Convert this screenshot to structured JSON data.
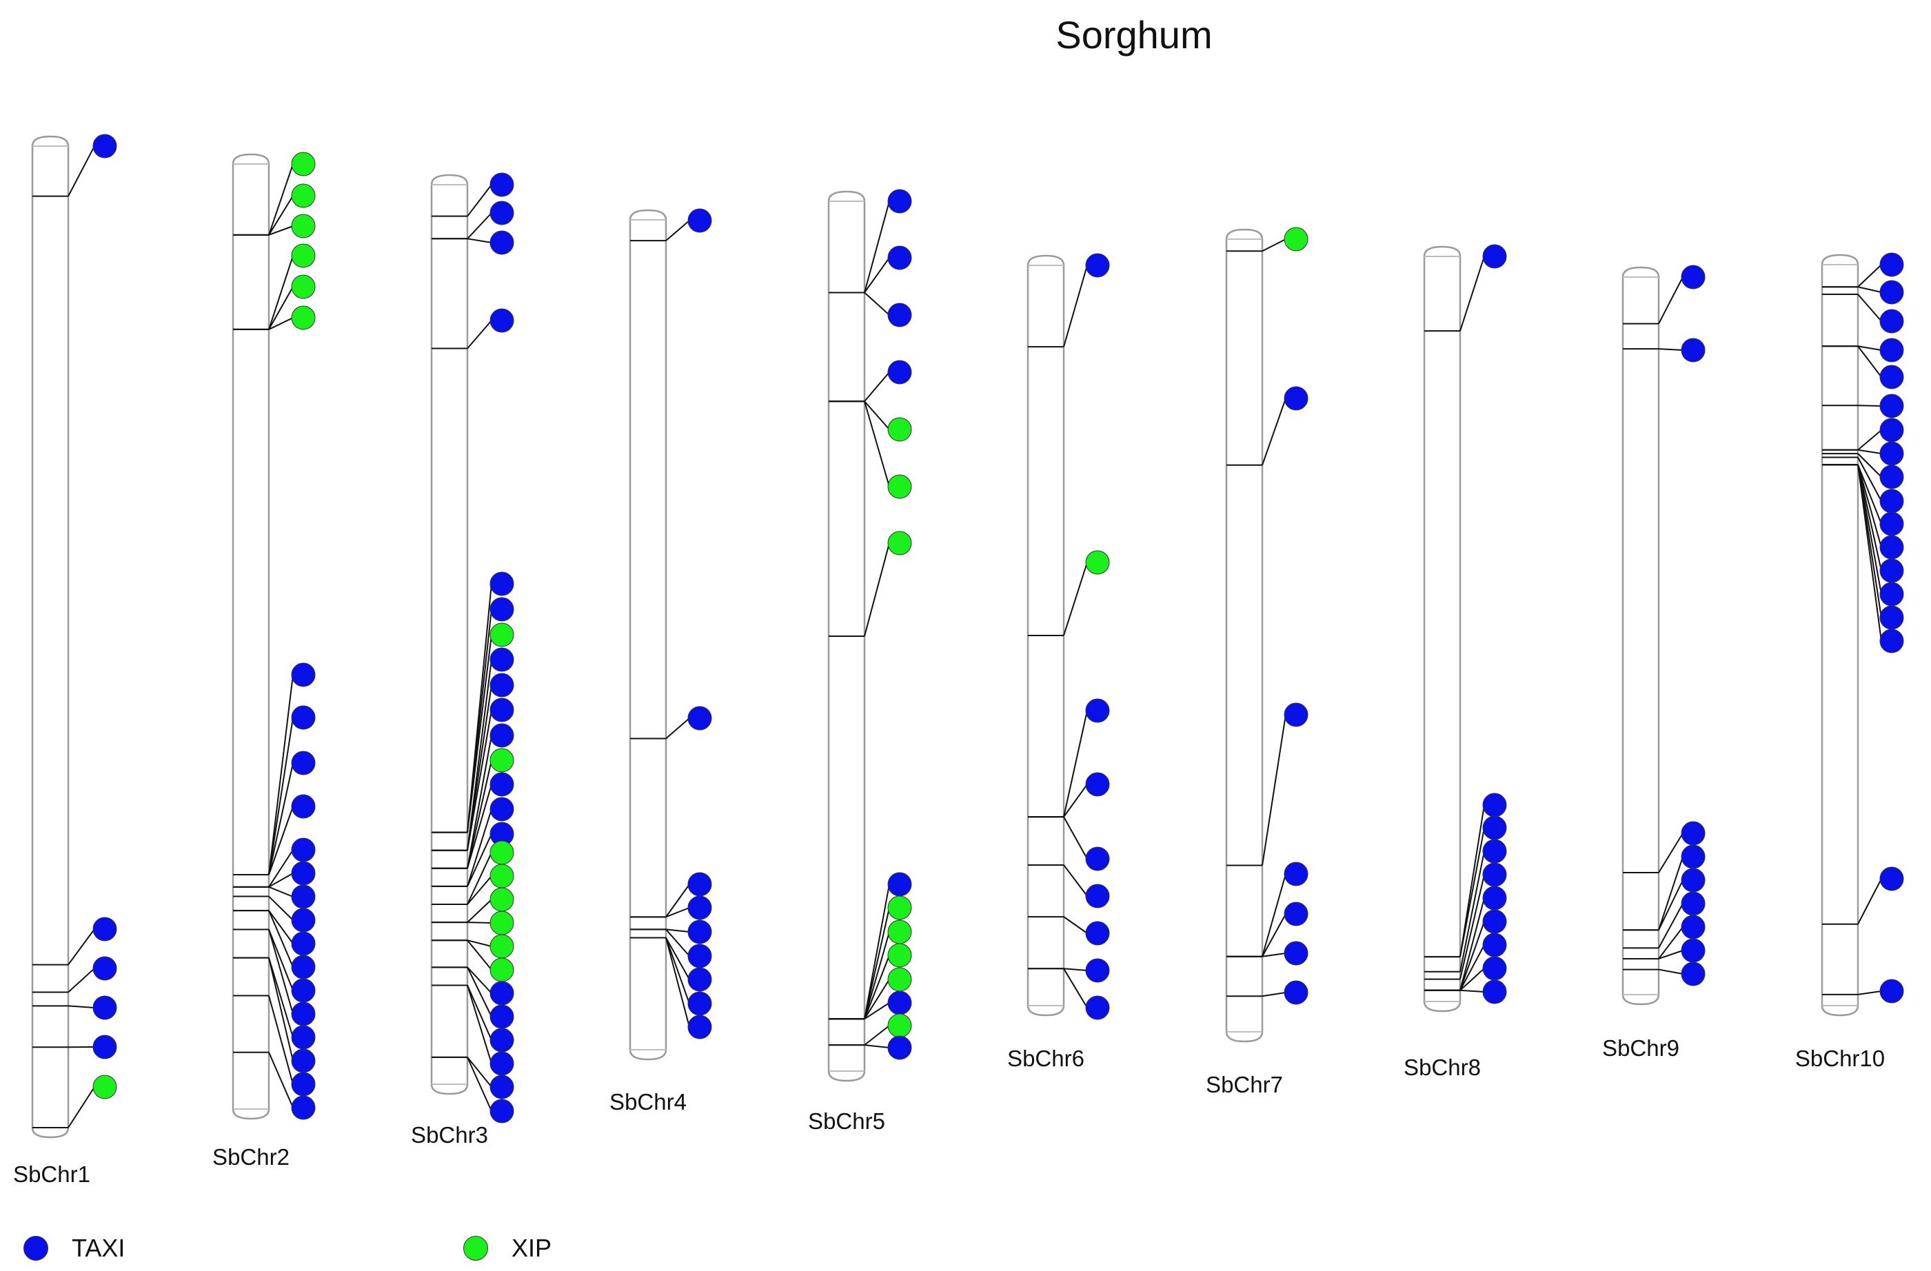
{
  "title": "Sorghum",
  "colors": {
    "TAXI": "#0a10e8",
    "XIP": "#1cf01c"
  },
  "legend": [
    {
      "label": "TAXI",
      "type": "TAXI"
    },
    {
      "label": "XIP",
      "type": "XIP"
    }
  ],
  "chromosomes": [
    {
      "name": "SbChr1",
      "genes": [
        {
          "type": "TAXI",
          "pos": 0.051
        },
        {
          "type": "TAXI",
          "pos": 0.834
        },
        {
          "type": "TAXI",
          "pos": 0.862
        },
        {
          "type": "TAXI",
          "pos": 0.876
        },
        {
          "type": "TAXI",
          "pos": 0.918
        },
        {
          "type": "XIP",
          "pos": 1.0
        }
      ]
    },
    {
      "name": "SbChr2",
      "genes": [
        {
          "type": "XIP",
          "pos": 0.075
        },
        {
          "type": "XIP",
          "pos": 0.075
        },
        {
          "type": "XIP",
          "pos": 0.075
        },
        {
          "type": "XIP",
          "pos": 0.175
        },
        {
          "type": "XIP",
          "pos": 0.175
        },
        {
          "type": "XIP",
          "pos": 0.175
        },
        {
          "type": "TAXI",
          "pos": 0.752
        },
        {
          "type": "TAXI",
          "pos": 0.752
        },
        {
          "type": "TAXI",
          "pos": 0.752
        },
        {
          "type": "TAXI",
          "pos": 0.752
        },
        {
          "type": "TAXI",
          "pos": 0.765
        },
        {
          "type": "TAXI",
          "pos": 0.765
        },
        {
          "type": "TAXI",
          "pos": 0.765
        },
        {
          "type": "TAXI",
          "pos": 0.775
        },
        {
          "type": "TAXI",
          "pos": 0.79
        },
        {
          "type": "TAXI",
          "pos": 0.79
        },
        {
          "type": "TAXI",
          "pos": 0.81
        },
        {
          "type": "TAXI",
          "pos": 0.81
        },
        {
          "type": "TAXI",
          "pos": 0.84
        },
        {
          "type": "TAXI",
          "pos": 0.84
        },
        {
          "type": "TAXI",
          "pos": 0.88
        },
        {
          "type": "TAXI",
          "pos": 0.94
        }
      ]
    },
    {
      "name": "SbChr3",
      "genes": [
        {
          "type": "TAXI",
          "pos": 0.035
        },
        {
          "type": "TAXI",
          "pos": 0.06
        },
        {
          "type": "TAXI",
          "pos": 0.06
        },
        {
          "type": "TAXI",
          "pos": 0.182
        },
        {
          "type": "TAXI",
          "pos": 0.72
        },
        {
          "type": "TAXI",
          "pos": 0.72
        },
        {
          "type": "XIP",
          "pos": 0.72
        },
        {
          "type": "TAXI",
          "pos": 0.74
        },
        {
          "type": "TAXI",
          "pos": 0.74
        },
        {
          "type": "TAXI",
          "pos": 0.74
        },
        {
          "type": "TAXI",
          "pos": 0.76
        },
        {
          "type": "XIP",
          "pos": 0.76
        },
        {
          "type": "TAXI",
          "pos": 0.76
        },
        {
          "type": "TAXI",
          "pos": 0.78
        },
        {
          "type": "TAXI",
          "pos": 0.78
        },
        {
          "type": "XIP",
          "pos": 0.8
        },
        {
          "type": "XIP",
          "pos": 0.8
        },
        {
          "type": "XIP",
          "pos": 0.82
        },
        {
          "type": "XIP",
          "pos": 0.82
        },
        {
          "type": "XIP",
          "pos": 0.84
        },
        {
          "type": "XIP",
          "pos": 0.84
        },
        {
          "type": "TAXI",
          "pos": 0.87
        },
        {
          "type": "TAXI",
          "pos": 0.87
        },
        {
          "type": "TAXI",
          "pos": 0.89
        },
        {
          "type": "TAXI",
          "pos": 0.89
        },
        {
          "type": "TAXI",
          "pos": 0.97
        },
        {
          "type": "TAXI",
          "pos": 0.97
        }
      ]
    },
    {
      "name": "SbChr4",
      "genes": [
        {
          "type": "TAXI",
          "pos": 0.025
        },
        {
          "type": "TAXI",
          "pos": 0.625
        },
        {
          "type": "TAXI",
          "pos": 0.84
        },
        {
          "type": "TAXI",
          "pos": 0.84
        },
        {
          "type": "TAXI",
          "pos": 0.855
        },
        {
          "type": "TAXI",
          "pos": 0.855
        },
        {
          "type": "TAXI",
          "pos": 0.865
        },
        {
          "type": "TAXI",
          "pos": 0.865
        },
        {
          "type": "TAXI",
          "pos": 0.865
        }
      ]
    },
    {
      "name": "SbChr5",
      "genes": [
        {
          "type": "TAXI",
          "pos": 0.105
        },
        {
          "type": "TAXI",
          "pos": 0.105
        },
        {
          "type": "TAXI",
          "pos": 0.105
        },
        {
          "type": "TAXI",
          "pos": 0.23
        },
        {
          "type": "XIP",
          "pos": 0.23
        },
        {
          "type": "XIP",
          "pos": 0.23
        },
        {
          "type": "XIP",
          "pos": 0.5
        },
        {
          "type": "TAXI",
          "pos": 0.94
        },
        {
          "type": "XIP",
          "pos": 0.94
        },
        {
          "type": "XIP",
          "pos": 0.94
        },
        {
          "type": "XIP",
          "pos": 0.94
        },
        {
          "type": "XIP",
          "pos": 0.94
        },
        {
          "type": "TAXI",
          "pos": 0.94
        },
        {
          "type": "XIP",
          "pos": 0.97
        },
        {
          "type": "TAXI",
          "pos": 0.97
        }
      ]
    },
    {
      "name": "SbChr6",
      "genes": [
        {
          "type": "TAXI",
          "pos": 0.11
        },
        {
          "type": "XIP",
          "pos": 0.5
        },
        {
          "type": "TAXI",
          "pos": 0.745
        },
        {
          "type": "TAXI",
          "pos": 0.745
        },
        {
          "type": "TAXI",
          "pos": 0.745
        },
        {
          "type": "TAXI",
          "pos": 0.81
        },
        {
          "type": "TAXI",
          "pos": 0.88
        },
        {
          "type": "TAXI",
          "pos": 0.95
        },
        {
          "type": "TAXI",
          "pos": 0.95
        }
      ]
    },
    {
      "name": "SbChr7",
      "genes": [
        {
          "type": "XIP",
          "pos": 0.015
        },
        {
          "type": "TAXI",
          "pos": 0.285
        },
        {
          "type": "TAXI",
          "pos": 0.79
        },
        {
          "type": "TAXI",
          "pos": 0.905
        },
        {
          "type": "TAXI",
          "pos": 0.905
        },
        {
          "type": "TAXI",
          "pos": 0.905
        },
        {
          "type": "TAXI",
          "pos": 0.955
        }
      ]
    },
    {
      "name": "SbChr8",
      "genes": [
        {
          "type": "TAXI",
          "pos": 0.1
        },
        {
          "type": "TAXI",
          "pos": 0.94
        },
        {
          "type": "TAXI",
          "pos": 0.94
        },
        {
          "type": "TAXI",
          "pos": 0.96
        },
        {
          "type": "TAXI",
          "pos": 0.97
        },
        {
          "type": "TAXI",
          "pos": 0.985
        },
        {
          "type": "TAXI",
          "pos": 0.985
        },
        {
          "type": "TAXI",
          "pos": 0.985
        },
        {
          "type": "TAXI",
          "pos": 0.985
        },
        {
          "type": "TAXI",
          "pos": 0.985
        }
      ]
    },
    {
      "name": "SbChr9",
      "genes": [
        {
          "type": "TAXI",
          "pos": 0.065
        },
        {
          "type": "TAXI",
          "pos": 0.1
        },
        {
          "type": "TAXI",
          "pos": 0.83
        },
        {
          "type": "TAXI",
          "pos": 0.91
        },
        {
          "type": "TAXI",
          "pos": 0.91
        },
        {
          "type": "TAXI",
          "pos": 0.935
        },
        {
          "type": "TAXI",
          "pos": 0.95
        },
        {
          "type": "TAXI",
          "pos": 0.95
        },
        {
          "type": "TAXI",
          "pos": 0.965
        }
      ]
    },
    {
      "name": "SbChr10",
      "genes": [
        {
          "type": "TAXI",
          "pos": 0.03
        },
        {
          "type": "TAXI",
          "pos": 0.03
        },
        {
          "type": "TAXI",
          "pos": 0.04
        },
        {
          "type": "TAXI",
          "pos": 0.11
        },
        {
          "type": "TAXI",
          "pos": 0.11
        },
        {
          "type": "TAXI",
          "pos": 0.19
        },
        {
          "type": "TAXI",
          "pos": 0.25
        },
        {
          "type": "TAXI",
          "pos": 0.25
        },
        {
          "type": "TAXI",
          "pos": 0.255
        },
        {
          "type": "TAXI",
          "pos": 0.26
        },
        {
          "type": "TAXI",
          "pos": 0.27
        },
        {
          "type": "TAXI",
          "pos": 0.27
        },
        {
          "type": "TAXI",
          "pos": 0.27
        },
        {
          "type": "TAXI",
          "pos": 0.27
        },
        {
          "type": "TAXI",
          "pos": 0.27
        },
        {
          "type": "TAXI",
          "pos": 0.27
        },
        {
          "type": "TAXI",
          "pos": 0.89
        },
        {
          "type": "TAXI",
          "pos": 0.985
        }
      ]
    }
  ]
}
